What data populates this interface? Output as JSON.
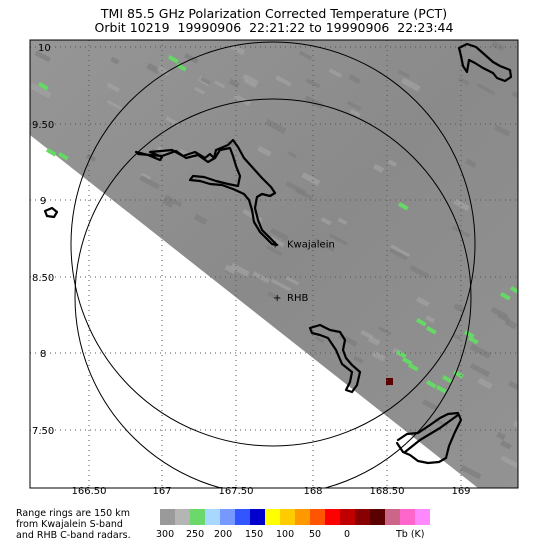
{
  "title_line1": "TMI 85.5 GHz Polarization Corrected Temperature (PCT)",
  "title_line2": "Orbit 10219  19990906  22:21:22 to 19990906  22:23:44",
  "x_axis": {
    "ticks": [
      "166.50",
      "167",
      "167.50",
      "168",
      "168.50",
      "169"
    ],
    "range": [
      166.25,
      169.1
    ]
  },
  "y_axis": {
    "ticks": [
      "10",
      "9.50",
      "9",
      "8.50",
      "8",
      "7.50"
    ],
    "range": [
      7.25,
      10.05
    ]
  },
  "sites": [
    {
      "name": "Kwajalein",
      "label": "Kwajalein",
      "lon": 167.73,
      "lat": 8.72
    },
    {
      "name": "RHB",
      "label": "RHB",
      "lon": 167.73,
      "lat": 8.4
    }
  ],
  "range_ring_km": 150,
  "note_line1": "Range rings are 150 km",
  "note_line2": "from Kwajalein S-band",
  "note_line3": "and RHB C-band radars.",
  "colorbar": {
    "colors": [
      "#9a9a9a",
      "#b5b5b5",
      "#6ad86a",
      "#a8d8ff",
      "#7799ff",
      "#3355ff",
      "#0000cc",
      "#ffff00",
      "#ffcc00",
      "#ff9900",
      "#ff5500",
      "#ff0000",
      "#c00000",
      "#880000",
      "#5a0000",
      "#cc6688",
      "#ff66cc",
      "#ff88ff"
    ],
    "tick_labels": [
      "300",
      "250",
      "200",
      "150",
      "100",
      "50",
      "0"
    ],
    "unit": "Tb (K)"
  },
  "swath_color": "#8e8e8e",
  "rain_color": "#66d866"
}
